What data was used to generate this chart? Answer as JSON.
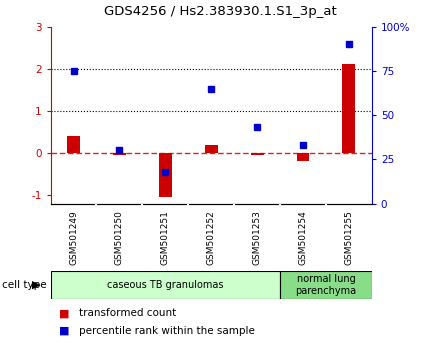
{
  "title": "GDS4256 / Hs2.383930.1.S1_3p_at",
  "samples": [
    "GSM501249",
    "GSM501250",
    "GSM501251",
    "GSM501252",
    "GSM501253",
    "GSM501254",
    "GSM501255"
  ],
  "transformed_count": [
    0.4,
    -0.05,
    -1.05,
    0.18,
    -0.05,
    -0.2,
    2.1
  ],
  "percentile_rank": [
    75,
    30,
    18,
    65,
    43,
    33,
    90
  ],
  "bar_color": "#cc0000",
  "dot_color": "#0000cc",
  "left_ylim": [
    -1.2,
    3.0
  ],
  "right_ylim": [
    0,
    100
  ],
  "left_yticks": [
    -1,
    0,
    1,
    2,
    3
  ],
  "right_yticks": [
    0,
    25,
    50,
    75,
    100
  ],
  "right_yticklabels": [
    "0",
    "25",
    "50",
    "75",
    "100%"
  ],
  "hline_y": [
    1.0,
    2.0
  ],
  "dashed_hline_y": 0.0,
  "cell_type_groups": [
    {
      "label": "caseous TB granulomas",
      "start": 0,
      "end": 4,
      "color": "#ccffcc"
    },
    {
      "label": "normal lung\nparenchyma",
      "start": 5,
      "end": 6,
      "color": "#88dd88"
    }
  ],
  "cell_type_label": "cell type",
  "legend_items": [
    {
      "label": "transformed count",
      "color": "#cc0000"
    },
    {
      "label": "percentile rank within the sample",
      "color": "#0000cc"
    }
  ],
  "bg_color": "#ffffff",
  "plot_bg_color": "#ffffff",
  "label_box_color": "#cccccc",
  "label_box_border": "#888888"
}
